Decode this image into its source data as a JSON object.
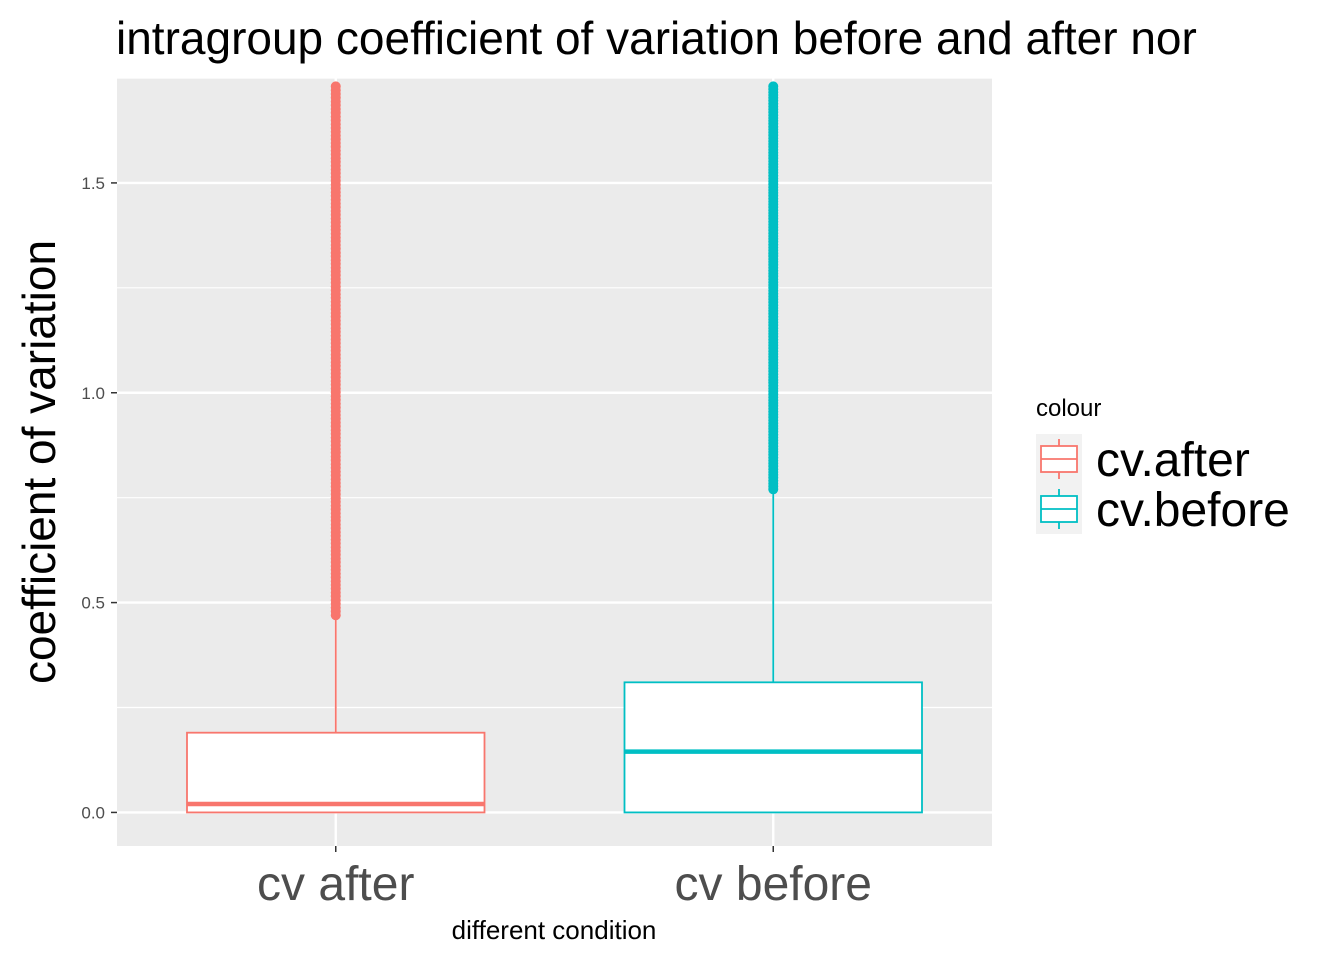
{
  "chart_data": {
    "type": "boxplot",
    "title": "intragroup coefficient of variation before and after nor",
    "xlabel": "different condition",
    "ylabel": "coefficient of variation",
    "ylim": [
      -0.08,
      1.75
    ],
    "yticks": [
      0.0,
      0.5,
      1.0,
      1.5
    ],
    "ytick_labels": [
      "0.0",
      "0.5",
      "1.0",
      "1.5"
    ],
    "grid": true,
    "legend": {
      "title": "colour",
      "placement": "right",
      "entries": [
        "cv.after",
        "cv.before"
      ]
    },
    "categories": [
      "cv after",
      "cv before"
    ],
    "series": [
      {
        "name": "cv.after",
        "category": "cv after",
        "color": "#F8766D",
        "min": 0.0,
        "q1": 0.0,
        "median": 0.02,
        "q3": 0.19,
        "whisker_high": 0.47,
        "outliers_range": [
          0.47,
          1.73
        ]
      },
      {
        "name": "cv.before",
        "category": "cv before",
        "color": "#00BFC4",
        "min": 0.0,
        "q1": 0.0,
        "median": 0.145,
        "q3": 0.31,
        "whisker_high": 0.77,
        "outliers_range": [
          0.77,
          1.73
        ]
      }
    ]
  },
  "colors": {
    "panel_background": "#EBEBEB",
    "grid": "#FFFFFF",
    "legend_key_background": "#F2F2F2"
  }
}
